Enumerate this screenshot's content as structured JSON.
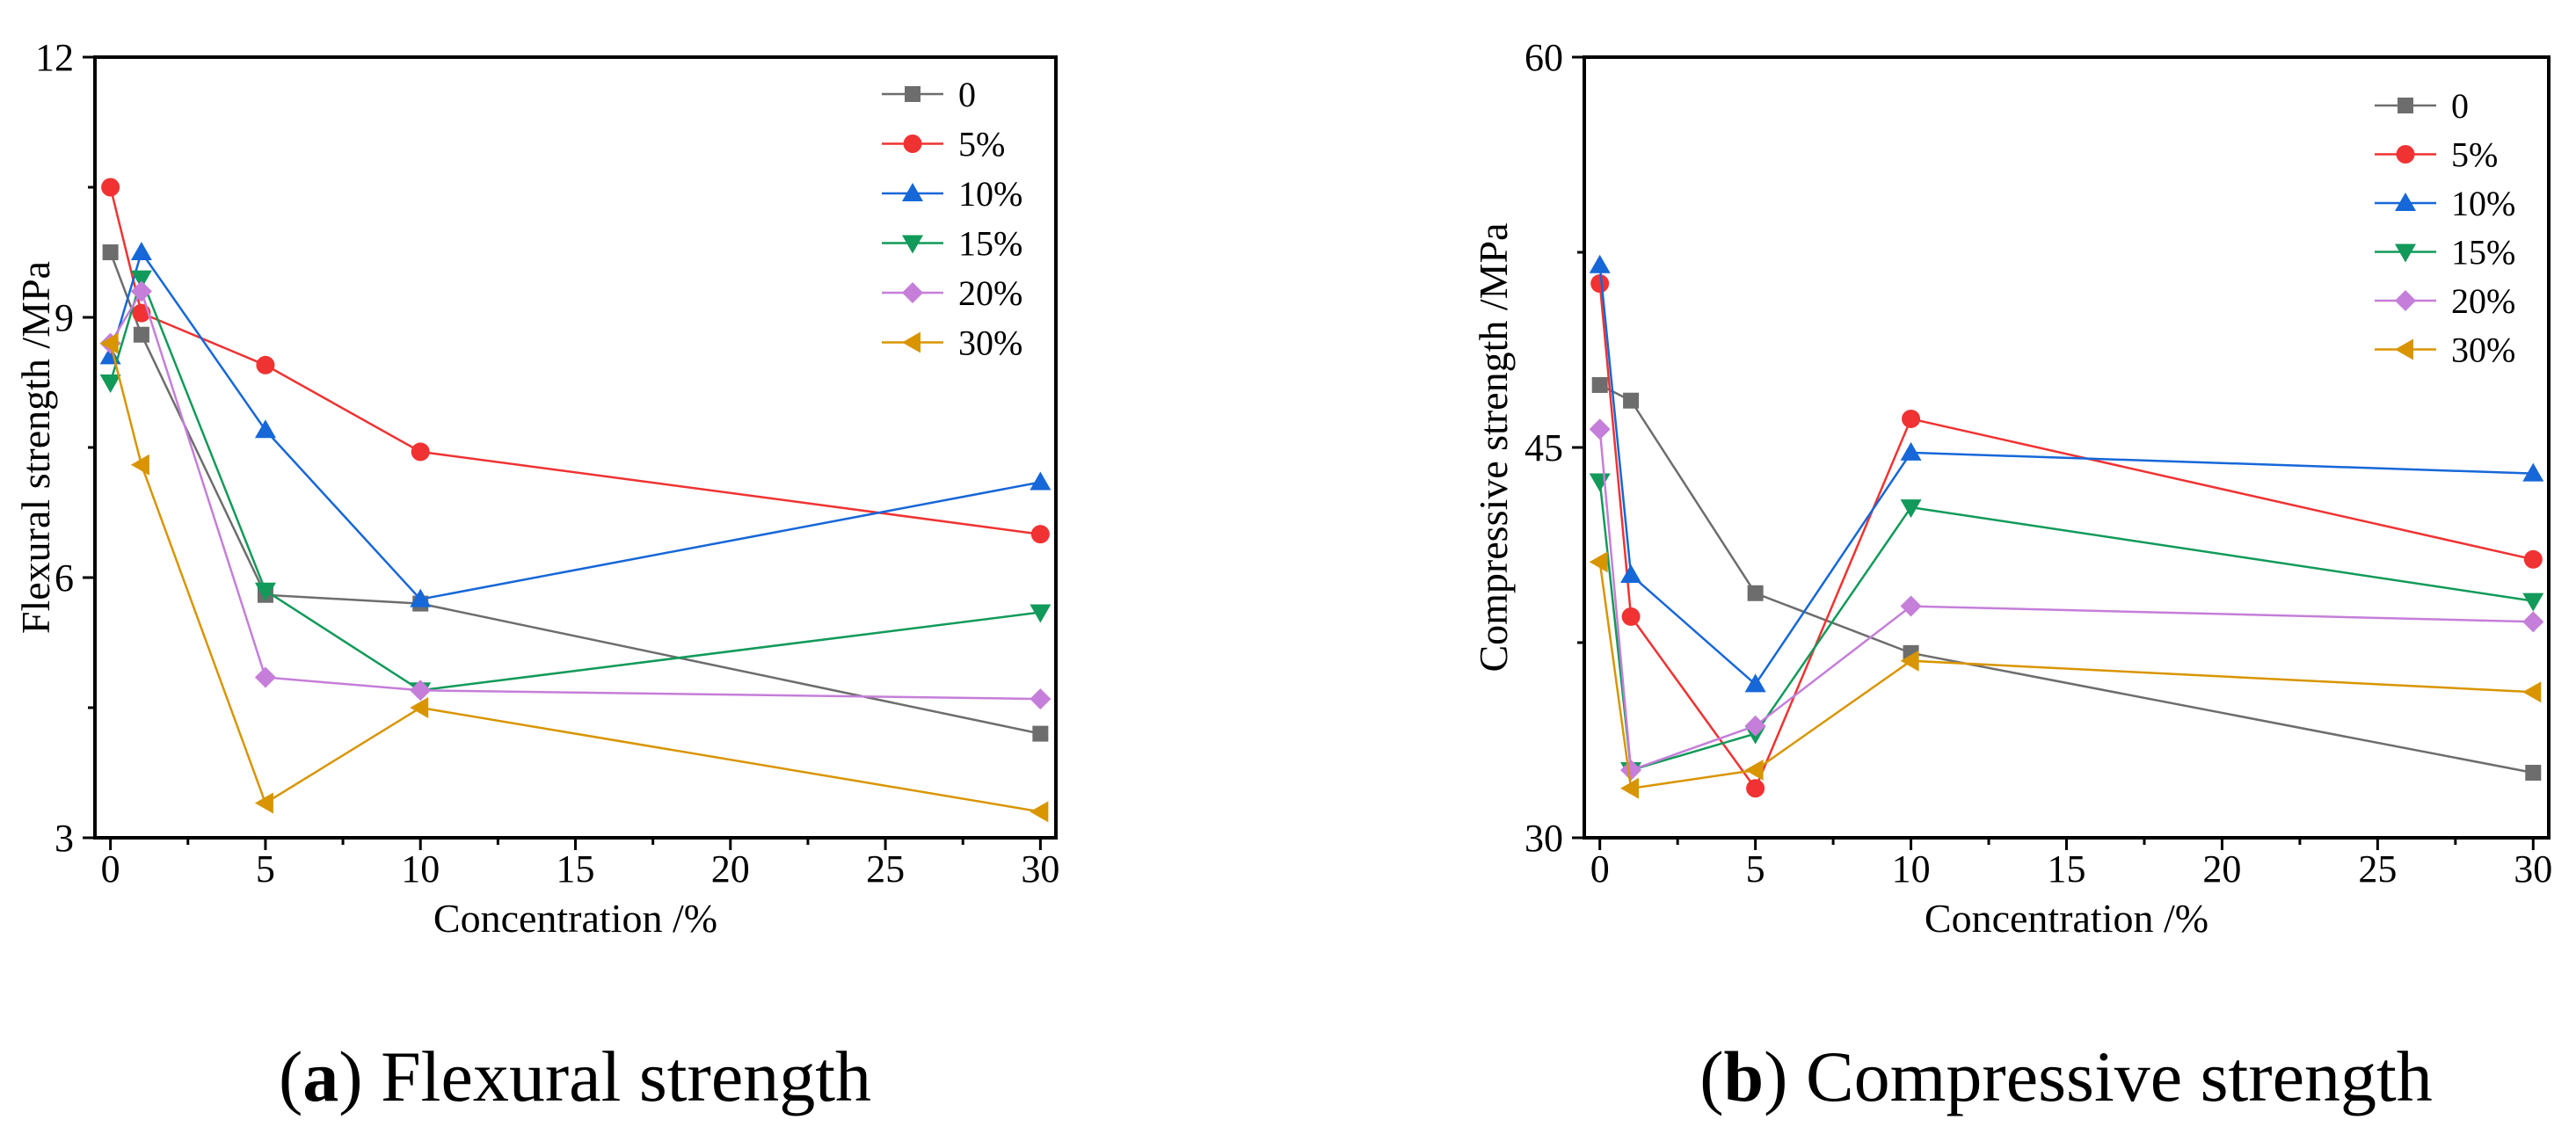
{
  "chart_data": [
    {
      "id": "a",
      "type": "line",
      "title": "",
      "caption_letter": "a",
      "caption_text": "Flexural strength",
      "xlabel": "Concentration /%",
      "ylabel": "Flexural strength /MPa",
      "xlim": [
        -0.5,
        30.5
      ],
      "ylim": [
        3,
        12
      ],
      "xticks": [
        0,
        5,
        10,
        15,
        20,
        25,
        30
      ],
      "yticks": [
        3,
        6,
        9,
        12
      ],
      "grid": false,
      "legend_position": "top-right",
      "x": [
        0,
        1,
        5,
        10,
        30
      ],
      "series": [
        {
          "name": "0",
          "color": "#6d6d6d",
          "marker": "square",
          "values": [
            9.75,
            8.8,
            5.8,
            5.7,
            4.2
          ]
        },
        {
          "name": "5%",
          "color": "#f03232",
          "marker": "circle",
          "values": [
            10.5,
            9.05,
            8.45,
            7.45,
            6.5
          ]
        },
        {
          "name": "10%",
          "color": "#1667d8",
          "marker": "triangle-up",
          "values": [
            8.55,
            9.75,
            7.7,
            5.75,
            7.1
          ]
        },
        {
          "name": "15%",
          "color": "#119a5a",
          "marker": "triangle-down",
          "values": [
            8.25,
            9.45,
            5.85,
            4.7,
            5.6
          ]
        },
        {
          "name": "20%",
          "color": "#c57ed9",
          "marker": "diamond",
          "values": [
            8.7,
            9.3,
            4.85,
            4.7,
            4.6
          ]
        },
        {
          "name": "30%",
          "color": "#d89500",
          "marker": "triangle-left",
          "values": [
            8.7,
            7.3,
            3.4,
            4.5,
            3.3
          ]
        }
      ]
    },
    {
      "id": "b",
      "type": "line",
      "title": "",
      "caption_letter": "b",
      "caption_text": "Compressive strength",
      "xlabel": "Concentration /%",
      "ylabel": "Compressive strength /MPa",
      "xlim": [
        -0.5,
        30.5
      ],
      "ylim": [
        30,
        60
      ],
      "xticks": [
        0,
        5,
        10,
        15,
        20,
        25,
        30
      ],
      "yticks": [
        30,
        45,
        60
      ],
      "grid": false,
      "legend_position": "top-right",
      "x": [
        0,
        1,
        5,
        10,
        30
      ],
      "series": [
        {
          "name": "0",
          "color": "#6d6d6d",
          "marker": "square",
          "values": [
            47.4,
            46.8,
            39.4,
            37.1,
            32.5
          ]
        },
        {
          "name": "5%",
          "color": "#f03232",
          "marker": "circle",
          "values": [
            51.3,
            38.5,
            31.9,
            46.1,
            40.7
          ]
        },
        {
          "name": "10%",
          "color": "#1667d8",
          "marker": "triangle-up",
          "values": [
            52.0,
            40.1,
            35.9,
            44.8,
            44.0
          ]
        },
        {
          "name": "15%",
          "color": "#119a5a",
          "marker": "triangle-down",
          "values": [
            43.7,
            32.6,
            34.0,
            42.7,
            39.1
          ]
        },
        {
          "name": "20%",
          "color": "#c57ed9",
          "marker": "diamond",
          "values": [
            45.7,
            32.6,
            34.3,
            38.9,
            38.3
          ]
        },
        {
          "name": "30%",
          "color": "#d89500",
          "marker": "triangle-left",
          "values": [
            40.6,
            31.9,
            32.6,
            36.8,
            35.6
          ]
        }
      ]
    }
  ]
}
